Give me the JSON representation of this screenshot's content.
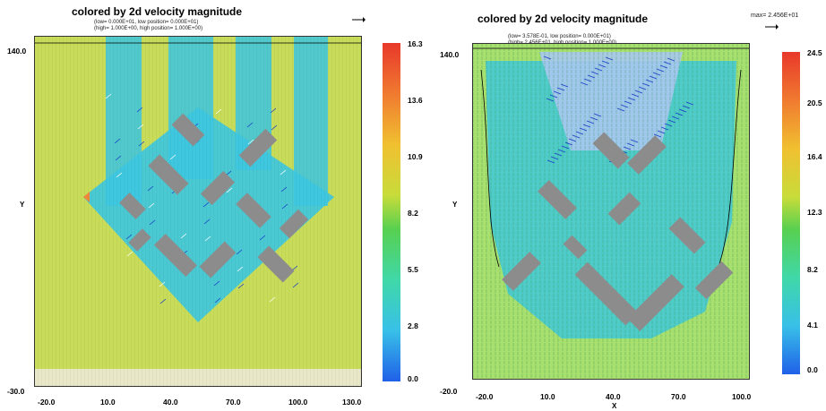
{
  "chart_data": [
    {
      "type": "heatmap",
      "title": "colored by 2d velocity magnitude",
      "subtitle_lines": [
        "(low= 0.000E+01, low position= 0.000E+01)",
        "(high= 1.000E+00, high position= 1.000E+00)"
      ],
      "ylabel": "Y",
      "y_ticks": [
        "140.0",
        "-30.0"
      ],
      "x_ticks": [
        "-20.0",
        "10.0",
        "40.0",
        "70.0",
        "100.0",
        "130.0"
      ],
      "xlim": [
        -30,
        130
      ],
      "ylim": [
        -30,
        140
      ],
      "colorbar": {
        "ticks": [
          "16.3",
          "13.6",
          "10.9",
          "8.2",
          "5.5",
          "2.8",
          "0.0"
        ],
        "range": [
          0.0,
          16.3
        ]
      },
      "colors": {
        "far_field": "#c8dc5a",
        "wake": "#3cc6e0",
        "stagnation": "#f08a3a",
        "building": "#8c8c8c",
        "arrows": "#1a3cc8"
      }
    },
    {
      "type": "heatmap",
      "title": "colored by 2d velocity magnitude",
      "max_label": "max= 2.456E+01",
      "subtitle_lines": [
        "(low= 3.578E-01, low position= 0.000E+01)",
        "(high= 2.456E+01, high position= 1.000E+00)"
      ],
      "ylabel": "Y",
      "xlabel": "X",
      "y_ticks": [
        "140.0",
        "-20.0"
      ],
      "x_ticks": [
        "-20.0",
        "10.0",
        "40.0",
        "70.0",
        "100.0"
      ],
      "xlim": [
        -20,
        100
      ],
      "ylim": [
        -20,
        140
      ],
      "colorbar": {
        "ticks": [
          "24.5",
          "20.5",
          "16.4",
          "12.3",
          "8.2",
          "4.1",
          "0.0"
        ],
        "range": [
          0.0,
          24.5
        ]
      },
      "colors": {
        "far_field": "#a8e070",
        "wake": "#40c8d8",
        "building": "#8c8c8c",
        "arrows": "#1a3cc8"
      }
    }
  ]
}
